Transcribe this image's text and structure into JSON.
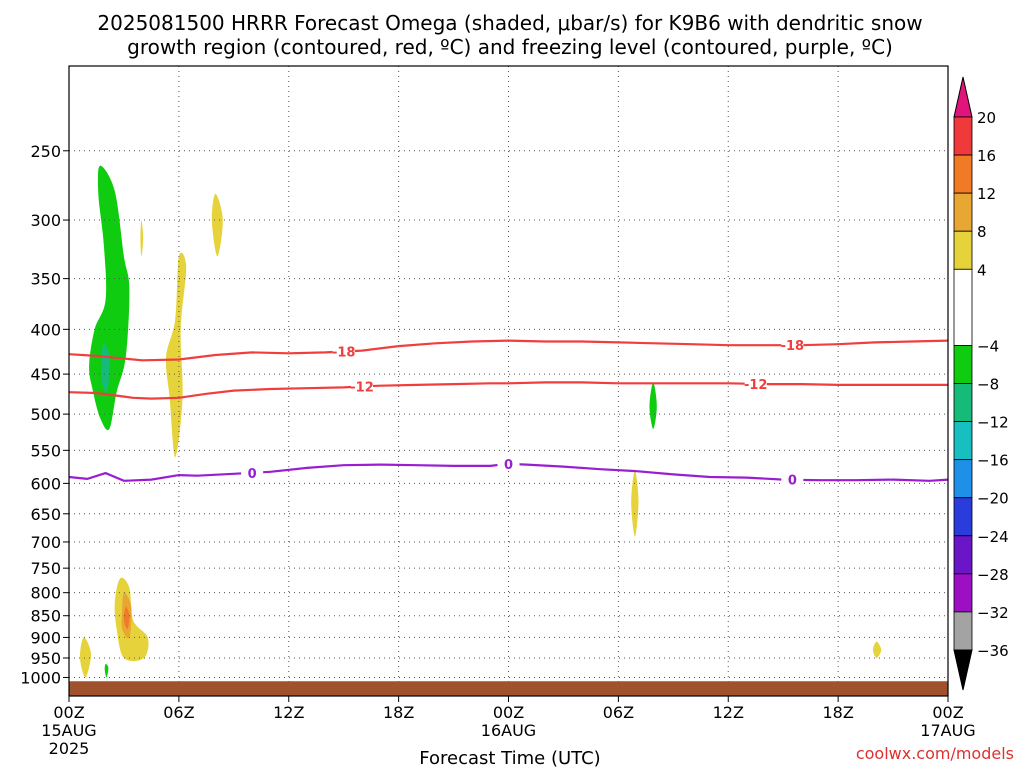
{
  "chart_data": {
    "type": "contour",
    "title_line1": "2025081500 HRRR Forecast Omega (shaded, μbar/s) for K9B6 with dendritic snow",
    "title_line2": "growth region (contoured, red, ºC) and freezing level (contoured, purple, ºC)",
    "xlabel": "Forecast Time (UTC)",
    "credit": "coolwx.com/models",
    "x_unit": "hours from 2025-08-15 00Z",
    "xlim": [
      0,
      48
    ],
    "x_ticks": [
      {
        "hour": 0,
        "label": "00Z",
        "sub1": "15AUG",
        "sub2": "2025"
      },
      {
        "hour": 6,
        "label": "06Z",
        "sub1": "",
        "sub2": ""
      },
      {
        "hour": 12,
        "label": "12Z",
        "sub1": "",
        "sub2": ""
      },
      {
        "hour": 18,
        "label": "18Z",
        "sub1": "",
        "sub2": ""
      },
      {
        "hour": 24,
        "label": "00Z",
        "sub1": "16AUG",
        "sub2": ""
      },
      {
        "hour": 30,
        "label": "06Z",
        "sub1": "",
        "sub2": ""
      },
      {
        "hour": 36,
        "label": "12Z",
        "sub1": "",
        "sub2": ""
      },
      {
        "hour": 42,
        "label": "18Z",
        "sub1": "",
        "sub2": ""
      },
      {
        "hour": 48,
        "label": "00Z",
        "sub1": "17AUG",
        "sub2": ""
      }
    ],
    "y_unit": "hPa",
    "y_scale": "log",
    "ylim": [
      1050,
      200
    ],
    "y_ticks": [
      250,
      300,
      350,
      400,
      450,
      500,
      550,
      600,
      650,
      700,
      750,
      800,
      850,
      900,
      950,
      1000
    ],
    "grid": true,
    "ground_pressure": 1010,
    "colorbar": {
      "labels": [
        "20",
        "16",
        "12",
        "8",
        "4",
        "−4",
        "−8",
        "−12",
        "−16",
        "−20",
        "−24",
        "−28",
        "−32",
        "−36"
      ],
      "top_arrow_color": "#e0147a",
      "bottom_arrow_color": "#000000",
      "bins": [
        {
          "from": 16,
          "to": 20,
          "color": "#f0393b"
        },
        {
          "from": 12,
          "to": 16,
          "color": "#f07a26"
        },
        {
          "from": 8,
          "to": 12,
          "color": "#e8a733"
        },
        {
          "from": 4,
          "to": 8,
          "color": "#e6d33b"
        },
        {
          "from": -4,
          "to": 4,
          "color": "#ffffff"
        },
        {
          "from": -8,
          "to": -4,
          "color": "#10cc10"
        },
        {
          "from": -12,
          "to": -8,
          "color": "#16bb7a"
        },
        {
          "from": -16,
          "to": -12,
          "color": "#17bfc0"
        },
        {
          "from": -20,
          "to": -16,
          "color": "#1e90e8"
        },
        {
          "from": -24,
          "to": -20,
          "color": "#2a3cdc"
        },
        {
          "from": -28,
          "to": -24,
          "color": "#6a15c8"
        },
        {
          "from": -32,
          "to": -28,
          "color": "#9c0fc5"
        },
        {
          "from": -36,
          "to": -32,
          "color": "#a3a3a3"
        }
      ]
    },
    "contours": [
      {
        "name": "-18",
        "color": "#f03e3e",
        "x": [
          0,
          1.5,
          2.5,
          4,
          6,
          8,
          10,
          12,
          14,
          16,
          18,
          20,
          22,
          24,
          26,
          28,
          30,
          32,
          34,
          36,
          38,
          40,
          42,
          44,
          46,
          48
        ],
        "y": [
          427,
          429,
          431,
          434,
          433,
          428,
          425,
          426,
          425,
          423,
          418,
          415,
          413,
          412,
          413,
          413,
          414,
          415,
          416,
          417,
          417,
          417,
          416,
          414,
          413,
          412
        ],
        "labels": [
          15.0,
          39.5
        ]
      },
      {
        "name": "-12",
        "color": "#f03e3e",
        "x": [
          0,
          1.5,
          2.5,
          3.5,
          4.5,
          6,
          7.5,
          9,
          11,
          13,
          15,
          17,
          19,
          21,
          23,
          24,
          26,
          28,
          30,
          32,
          34,
          36,
          38,
          40,
          42,
          44,
          46,
          48
        ],
        "y": [
          472,
          473,
          476,
          479,
          480,
          479,
          474,
          470,
          468,
          467,
          466,
          464,
          463,
          462,
          461,
          461,
          460,
          460,
          461,
          461,
          461,
          461,
          462,
          462,
          463,
          463,
          463,
          463
        ],
        "labels": [
          16.0,
          37.5
        ]
      },
      {
        "name": "0",
        "color": "#9a1ed0",
        "x": [
          0,
          1,
          2,
          3,
          4.5,
          6,
          7,
          9,
          11,
          13,
          15,
          17,
          19,
          21,
          23,
          24,
          25,
          27,
          29,
          31,
          33,
          35,
          37,
          39,
          41,
          43,
          45,
          47,
          48
        ],
        "y": [
          590,
          593,
          584,
          596,
          594,
          587,
          588,
          585,
          582,
          576,
          572,
          571,
          572,
          573,
          573,
          570,
          571,
          574,
          578,
          581,
          586,
          590,
          591,
          594,
          595,
          595,
          594,
          596,
          594
        ],
        "labels": [
          10.0,
          24.0,
          39.5
        ]
      }
    ],
    "omega_areas": [
      {
        "color": "#10cc10",
        "points": [
          [
            1.7,
            260
          ],
          [
            2.5,
            278
          ],
          [
            3.0,
            330
          ],
          [
            3.3,
            360
          ],
          [
            3.1,
            430
          ],
          [
            2.6,
            472
          ],
          [
            2.2,
            520
          ],
          [
            1.7,
            505
          ],
          [
            1.3,
            470
          ],
          [
            1.1,
            440
          ],
          [
            1.4,
            400
          ],
          [
            2.0,
            370
          ],
          [
            1.9,
            320
          ],
          [
            1.6,
            280
          ]
        ]
      },
      {
        "color": "#16bb7a",
        "points": [
          [
            1.9,
            415
          ],
          [
            2.2,
            430
          ],
          [
            2.1,
            470
          ],
          [
            1.8,
            460
          ],
          [
            1.8,
            430
          ]
        ]
      },
      {
        "color": "#e6d33b",
        "points": [
          [
            8.0,
            280
          ],
          [
            8.4,
            300
          ],
          [
            8.1,
            330
          ],
          [
            7.8,
            300
          ]
        ]
      },
      {
        "color": "#e6d33b",
        "points": [
          [
            3.95,
            300
          ],
          [
            4.05,
            315
          ],
          [
            3.95,
            330
          ],
          [
            3.9,
            315
          ]
        ]
      },
      {
        "color": "#e6d33b",
        "points": [
          [
            6.0,
            330
          ],
          [
            6.4,
            340
          ],
          [
            6.1,
            400
          ],
          [
            6.2,
            480
          ],
          [
            5.8,
            560
          ],
          [
            5.5,
            480
          ],
          [
            5.3,
            430
          ],
          [
            5.8,
            390
          ]
        ]
      },
      {
        "color": "#10cc10",
        "points": [
          [
            31.9,
            460
          ],
          [
            32.1,
            490
          ],
          [
            31.9,
            520
          ],
          [
            31.7,
            490
          ]
        ]
      },
      {
        "color": "#e6d33b",
        "points": [
          [
            30.9,
            580
          ],
          [
            31.1,
            630
          ],
          [
            30.9,
            690
          ],
          [
            30.7,
            630
          ]
        ]
      },
      {
        "color": "#e6d33b",
        "points": [
          [
            2.8,
            770
          ],
          [
            3.3,
            790
          ],
          [
            3.5,
            860
          ],
          [
            4.3,
            900
          ],
          [
            4.1,
            950
          ],
          [
            3.0,
            950
          ],
          [
            2.6,
            880
          ],
          [
            2.5,
            820
          ]
        ]
      },
      {
        "color": "#e8a733",
        "points": [
          [
            3.0,
            800
          ],
          [
            3.4,
            830
          ],
          [
            3.3,
            900
          ],
          [
            2.9,
            880
          ],
          [
            2.9,
            840
          ]
        ]
      },
      {
        "color": "#f07a26",
        "points": [
          [
            3.1,
            830
          ],
          [
            3.3,
            850
          ],
          [
            3.2,
            880
          ],
          [
            3.0,
            860
          ]
        ]
      },
      {
        "color": "#e6d33b",
        "points": [
          [
            0.8,
            900
          ],
          [
            1.2,
            940
          ],
          [
            0.9,
            1000
          ],
          [
            0.6,
            950
          ]
        ]
      },
      {
        "color": "#10cc10",
        "points": [
          [
            2.0,
            965
          ],
          [
            2.15,
            975
          ],
          [
            2.05,
            1000
          ],
          [
            1.95,
            980
          ]
        ]
      },
      {
        "color": "#e6d33b",
        "points": [
          [
            44.1,
            910
          ],
          [
            44.35,
            930
          ],
          [
            44.1,
            950
          ],
          [
            43.9,
            930
          ]
        ]
      }
    ]
  }
}
